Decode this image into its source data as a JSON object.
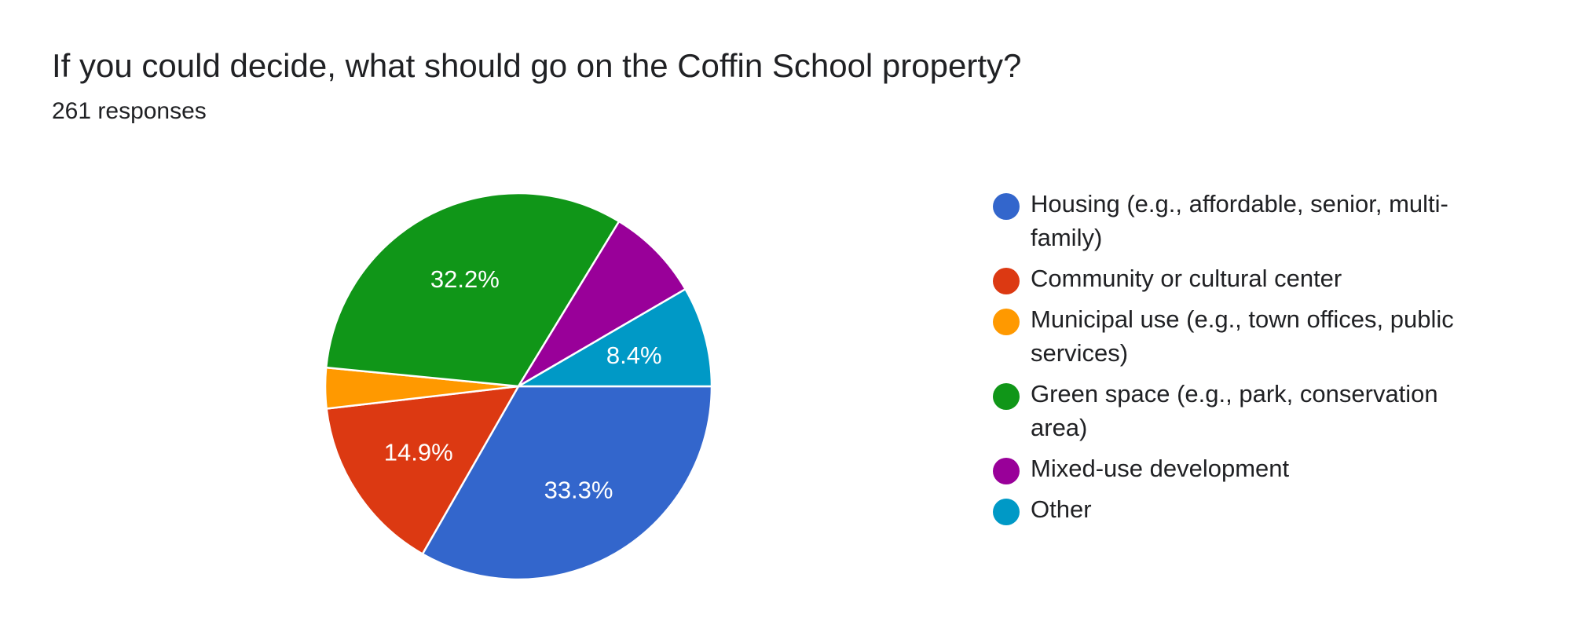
{
  "header": {
    "title": "If you could decide, what should go on the Coffin School property?",
    "responses": "261 responses"
  },
  "chart_data": {
    "type": "pie",
    "title": "If you could decide, what should go on the Coffin School property?",
    "categories": [
      "Housing (e.g., affordable, senior, multi-family)",
      "Community or cultural center",
      "Municipal use (e.g., town offices, public services)",
      "Green space (e.g., park, conservation area)",
      "Mixed-use development",
      "Other"
    ],
    "values": [
      33.3,
      14.9,
      3.4,
      32.2,
      7.9,
      8.4
    ],
    "labels": [
      "33.3%",
      "14.9%",
      "",
      "32.2%",
      "",
      "8.4%"
    ],
    "colors": [
      "#3366cc",
      "#dc3912",
      "#ff9900",
      "#109618",
      "#990099",
      "#0099c6"
    ],
    "start_angle_deg": 0,
    "direction": "clockwise",
    "legend_position": "right"
  }
}
